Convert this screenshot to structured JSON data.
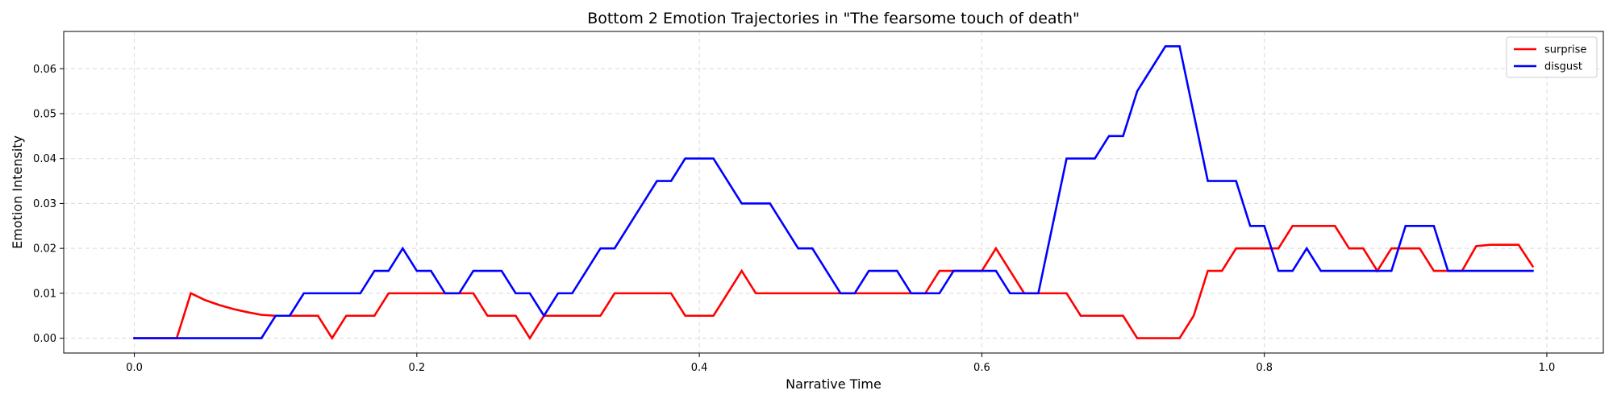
{
  "chart_data": {
    "type": "line",
    "title": "Bottom 2 Emotion Trajectories in \"The fearsome touch of death\"",
    "xlabel": "Narrative Time",
    "ylabel": "Emotion Intensity",
    "xlim": [
      -0.05,
      1.04
    ],
    "ylim": [
      -0.0033,
      0.0683
    ],
    "xticks": [
      0.0,
      0.2,
      0.4,
      0.6,
      0.8,
      1.0
    ],
    "xtick_labels": [
      "0.0",
      "0.2",
      "0.4",
      "0.6",
      "0.8",
      "1.0"
    ],
    "yticks": [
      0.0,
      0.01,
      0.02,
      0.03,
      0.04,
      0.05,
      0.06
    ],
    "ytick_labels": [
      "0.00",
      "0.01",
      "0.02",
      "0.03",
      "0.04",
      "0.05",
      "0.06"
    ],
    "grid": true,
    "legend_position": "top-right",
    "series": [
      {
        "name": "surprise",
        "color": "#ff0000",
        "x": [
          0.0,
          0.01,
          0.02,
          0.03,
          0.04,
          0.05,
          0.06,
          0.07,
          0.08,
          0.09,
          0.1,
          0.11,
          0.12,
          0.13,
          0.14,
          0.15,
          0.16,
          0.17,
          0.18,
          0.19,
          0.2,
          0.21,
          0.22,
          0.23,
          0.24,
          0.25,
          0.26,
          0.27,
          0.28,
          0.29,
          0.3,
          0.31,
          0.32,
          0.33,
          0.34,
          0.35,
          0.36,
          0.37,
          0.38,
          0.39,
          0.4,
          0.41,
          0.42,
          0.43,
          0.44,
          0.45,
          0.46,
          0.47,
          0.48,
          0.49,
          0.5,
          0.51,
          0.52,
          0.53,
          0.54,
          0.55,
          0.56,
          0.57,
          0.58,
          0.59,
          0.6,
          0.61,
          0.62,
          0.63,
          0.64,
          0.65,
          0.66,
          0.67,
          0.68,
          0.69,
          0.7,
          0.71,
          0.72,
          0.73,
          0.74,
          0.75,
          0.76,
          0.77,
          0.78,
          0.79,
          0.8,
          0.81,
          0.82,
          0.83,
          0.84,
          0.85,
          0.86,
          0.87,
          0.88,
          0.89,
          0.9,
          0.91,
          0.92,
          0.93,
          0.94,
          0.95,
          0.96,
          0.97,
          0.98,
          0.99
        ],
        "values": [
          0.0,
          0.0,
          0.0,
          0.0,
          0.01,
          0.0085,
          0.0074,
          0.0065,
          0.0058,
          0.0052,
          0.005,
          0.005,
          0.005,
          0.005,
          0.0,
          0.005,
          0.005,
          0.005,
          0.01,
          0.01,
          0.01,
          0.01,
          0.01,
          0.01,
          0.01,
          0.005,
          0.005,
          0.005,
          0.0,
          0.005,
          0.005,
          0.005,
          0.005,
          0.005,
          0.01,
          0.01,
          0.01,
          0.01,
          0.01,
          0.005,
          0.005,
          0.005,
          0.01,
          0.015,
          0.01,
          0.01,
          0.01,
          0.01,
          0.01,
          0.01,
          0.01,
          0.01,
          0.01,
          0.01,
          0.01,
          0.01,
          0.01,
          0.015,
          0.015,
          0.015,
          0.015,
          0.02,
          0.015,
          0.01,
          0.01,
          0.01,
          0.01,
          0.005,
          0.005,
          0.005,
          0.005,
          0.0,
          0.0,
          0.0,
          0.0,
          0.005,
          0.015,
          0.015,
          0.02,
          0.02,
          0.02,
          0.02,
          0.025,
          0.025,
          0.025,
          0.025,
          0.02,
          0.02,
          0.015,
          0.02,
          0.02,
          0.02,
          0.015,
          0.015,
          0.015,
          0.0205,
          0.0208,
          0.0208,
          0.0208,
          0.016
        ]
      },
      {
        "name": "disgust",
        "color": "#0000ff",
        "x": [
          0.0,
          0.01,
          0.02,
          0.03,
          0.04,
          0.05,
          0.06,
          0.07,
          0.08,
          0.09,
          0.1,
          0.11,
          0.12,
          0.13,
          0.14,
          0.15,
          0.16,
          0.17,
          0.18,
          0.19,
          0.2,
          0.21,
          0.22,
          0.23,
          0.24,
          0.25,
          0.26,
          0.27,
          0.28,
          0.29,
          0.3,
          0.31,
          0.32,
          0.33,
          0.34,
          0.35,
          0.36,
          0.37,
          0.38,
          0.39,
          0.4,
          0.41,
          0.42,
          0.43,
          0.44,
          0.45,
          0.46,
          0.47,
          0.48,
          0.49,
          0.5,
          0.51,
          0.52,
          0.53,
          0.54,
          0.55,
          0.56,
          0.57,
          0.58,
          0.59,
          0.6,
          0.61,
          0.62,
          0.63,
          0.64,
          0.65,
          0.66,
          0.67,
          0.68,
          0.69,
          0.7,
          0.71,
          0.72,
          0.73,
          0.74,
          0.75,
          0.76,
          0.77,
          0.78,
          0.79,
          0.8,
          0.81,
          0.82,
          0.83,
          0.84,
          0.85,
          0.86,
          0.87,
          0.88,
          0.89,
          0.9,
          0.91,
          0.92,
          0.93,
          0.94,
          0.95,
          0.96,
          0.97,
          0.98,
          0.99
        ],
        "values": [
          0.0,
          0.0,
          0.0,
          0.0,
          0.0,
          0.0,
          0.0,
          0.0,
          0.0,
          0.0,
          0.005,
          0.005,
          0.01,
          0.01,
          0.01,
          0.01,
          0.01,
          0.015,
          0.015,
          0.02,
          0.015,
          0.015,
          0.01,
          0.01,
          0.015,
          0.015,
          0.015,
          0.01,
          0.01,
          0.005,
          0.01,
          0.01,
          0.015,
          0.02,
          0.02,
          0.025,
          0.03,
          0.035,
          0.035,
          0.04,
          0.04,
          0.04,
          0.035,
          0.03,
          0.03,
          0.03,
          0.025,
          0.02,
          0.02,
          0.015,
          0.01,
          0.01,
          0.015,
          0.015,
          0.015,
          0.01,
          0.01,
          0.01,
          0.015,
          0.015,
          0.015,
          0.015,
          0.01,
          0.01,
          0.01,
          0.025,
          0.04,
          0.04,
          0.04,
          0.045,
          0.045,
          0.055,
          0.06,
          0.065,
          0.065,
          0.05,
          0.035,
          0.035,
          0.035,
          0.025,
          0.025,
          0.015,
          0.015,
          0.02,
          0.015,
          0.015,
          0.015,
          0.015,
          0.015,
          0.015,
          0.025,
          0.025,
          0.025,
          0.015,
          0.015,
          0.015,
          0.015,
          0.015,
          0.015,
          0.015
        ]
      }
    ]
  }
}
